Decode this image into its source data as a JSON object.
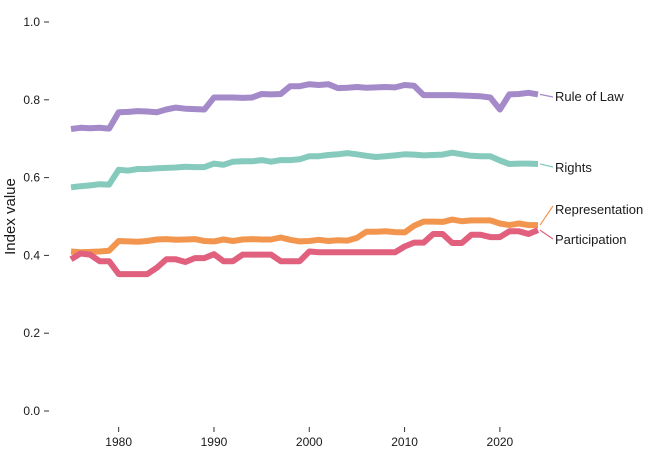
{
  "chart_data": {
    "type": "line",
    "title": "",
    "xlabel": "",
    "ylabel": "Index value",
    "xlim": [
      1975,
      2024
    ],
    "ylim": [
      0.0,
      1.0
    ],
    "xticks": [
      1980,
      1990,
      2000,
      2010,
      2020
    ],
    "yticks": [
      "0.0",
      "0.2",
      "0.4",
      "0.6",
      "0.8",
      "1.0"
    ],
    "grid": false,
    "legend": "direct labels at right end of each line",
    "x": [
      1975,
      1976,
      1977,
      1978,
      1979,
      1980,
      1981,
      1982,
      1983,
      1984,
      1985,
      1986,
      1987,
      1988,
      1989,
      1990,
      1991,
      1992,
      1993,
      1994,
      1995,
      1996,
      1997,
      1998,
      1999,
      2000,
      2001,
      2002,
      2003,
      2004,
      2005,
      2006,
      2007,
      2008,
      2009,
      2010,
      2011,
      2012,
      2013,
      2014,
      2015,
      2016,
      2017,
      2018,
      2019,
      2020,
      2021,
      2022,
      2023,
      2024
    ],
    "series": [
      {
        "name": "Rule of Law",
        "color": "#a58ac9",
        "values": [
          0.725,
          0.728,
          0.727,
          0.728,
          0.726,
          0.768,
          0.769,
          0.771,
          0.77,
          0.768,
          0.775,
          0.78,
          0.777,
          0.776,
          0.775,
          0.806,
          0.806,
          0.806,
          0.805,
          0.806,
          0.815,
          0.814,
          0.815,
          0.835,
          0.835,
          0.84,
          0.838,
          0.84,
          0.83,
          0.831,
          0.833,
          0.831,
          0.832,
          0.833,
          0.832,
          0.838,
          0.836,
          0.812,
          0.812,
          0.812,
          0.812,
          0.811,
          0.81,
          0.809,
          0.806,
          0.775,
          0.814,
          0.815,
          0.818,
          0.814
        ]
      },
      {
        "name": "Rights",
        "color": "#86cabd",
        "values": [
          0.575,
          0.578,
          0.58,
          0.583,
          0.582,
          0.62,
          0.618,
          0.622,
          0.622,
          0.624,
          0.625,
          0.626,
          0.628,
          0.627,
          0.627,
          0.636,
          0.633,
          0.641,
          0.642,
          0.642,
          0.645,
          0.641,
          0.645,
          0.645,
          0.647,
          0.655,
          0.655,
          0.658,
          0.66,
          0.663,
          0.66,
          0.656,
          0.653,
          0.655,
          0.657,
          0.66,
          0.659,
          0.657,
          0.658,
          0.659,
          0.664,
          0.66,
          0.656,
          0.655,
          0.655,
          0.644,
          0.635,
          0.636,
          0.636,
          0.635
        ]
      },
      {
        "name": "Representation",
        "color": "#f2964f",
        "values": [
          0.41,
          0.408,
          0.409,
          0.41,
          0.412,
          0.437,
          0.436,
          0.435,
          0.437,
          0.441,
          0.442,
          0.44,
          0.441,
          0.442,
          0.437,
          0.436,
          0.441,
          0.437,
          0.441,
          0.442,
          0.441,
          0.441,
          0.446,
          0.44,
          0.436,
          0.437,
          0.44,
          0.437,
          0.439,
          0.438,
          0.445,
          0.461,
          0.461,
          0.462,
          0.46,
          0.459,
          0.476,
          0.487,
          0.487,
          0.486,
          0.492,
          0.488,
          0.49,
          0.49,
          0.49,
          0.482,
          0.478,
          0.482,
          0.478,
          0.478
        ]
      },
      {
        "name": "Participation",
        "color": "#e0607e",
        "values": [
          0.39,
          0.405,
          0.402,
          0.385,
          0.385,
          0.352,
          0.352,
          0.352,
          0.352,
          0.368,
          0.39,
          0.39,
          0.383,
          0.393,
          0.393,
          0.403,
          0.385,
          0.385,
          0.402,
          0.402,
          0.402,
          0.402,
          0.385,
          0.385,
          0.385,
          0.41,
          0.408,
          0.408,
          0.408,
          0.408,
          0.408,
          0.408,
          0.408,
          0.408,
          0.408,
          0.423,
          0.433,
          0.433,
          0.455,
          0.455,
          0.432,
          0.432,
          0.453,
          0.453,
          0.447,
          0.447,
          0.462,
          0.462,
          0.455,
          0.465
        ]
      }
    ],
    "labels": [
      {
        "text": "Rule of Law",
        "series": 0
      },
      {
        "text": "Rights",
        "series": 1
      },
      {
        "text": "Representation",
        "series": 2
      },
      {
        "text": "Participation",
        "series": 3
      }
    ]
  }
}
